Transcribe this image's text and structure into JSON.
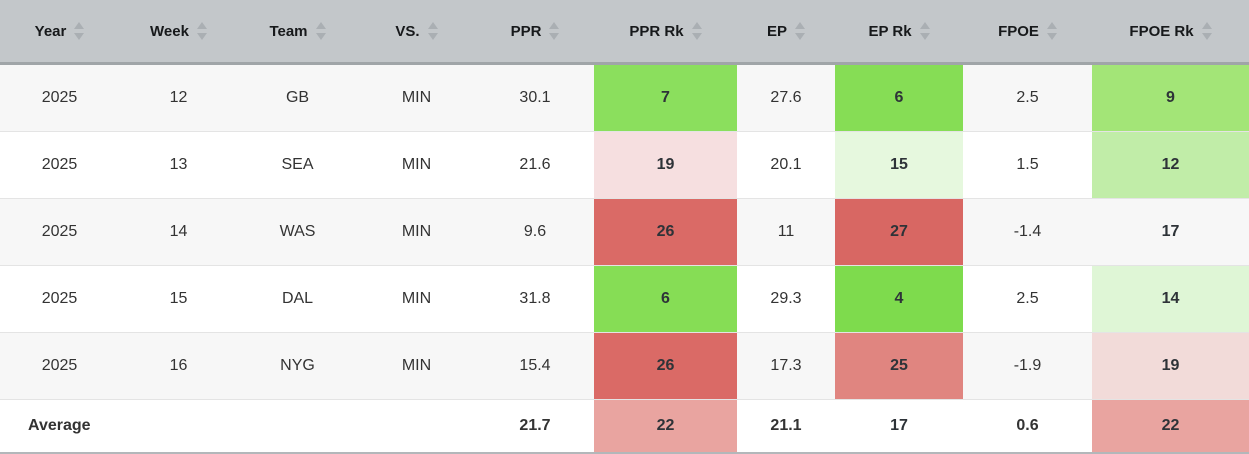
{
  "table": {
    "columns": [
      {
        "label": "Year"
      },
      {
        "label": "Week"
      },
      {
        "label": "Team"
      },
      {
        "label": "VS."
      },
      {
        "label": "PPR"
      },
      {
        "label": "PPR Rk"
      },
      {
        "label": "EP"
      },
      {
        "label": "EP Rk"
      },
      {
        "label": "FPOE"
      },
      {
        "label": "FPOE Rk"
      }
    ],
    "rows": [
      {
        "cells": [
          "2025",
          "12",
          "GB",
          "MIN",
          "30.1",
          "7",
          "27.6",
          "6",
          "2.5",
          "9"
        ],
        "cell_colors": [
          null,
          null,
          null,
          null,
          null,
          "#8bdf5d",
          null,
          "#86dd55",
          null,
          "#a3e577"
        ]
      },
      {
        "cells": [
          "2025",
          "13",
          "SEA",
          "MIN",
          "21.6",
          "19",
          "20.1",
          "15",
          "1.5",
          "12"
        ],
        "cell_colors": [
          null,
          null,
          null,
          null,
          null,
          "#f6dfe0",
          null,
          "#e6f8de",
          null,
          "#c1eda8"
        ]
      },
      {
        "cells": [
          "2025",
          "14",
          "WAS",
          "MIN",
          "9.6",
          "26",
          "11",
          "27",
          "-1.4",
          "17"
        ],
        "cell_colors": [
          null,
          null,
          null,
          null,
          null,
          "#da6a66",
          null,
          "#d86763",
          null,
          null
        ]
      },
      {
        "cells": [
          "2025",
          "15",
          "DAL",
          "MIN",
          "31.8",
          "6",
          "29.3",
          "4",
          "2.5",
          "14"
        ],
        "cell_colors": [
          null,
          null,
          null,
          null,
          null,
          "#86dd55",
          null,
          "#7edb4d",
          null,
          "#dff6d6"
        ]
      },
      {
        "cells": [
          "2025",
          "16",
          "NYG",
          "MIN",
          "15.4",
          "26",
          "17.3",
          "25",
          "-1.9",
          "19"
        ],
        "cell_colors": [
          null,
          null,
          null,
          null,
          null,
          "#da6a66",
          null,
          "#e08580",
          null,
          "#f2dbd9"
        ]
      }
    ],
    "average_row": {
      "cells": [
        "Average",
        "",
        "",
        "",
        "21.7",
        "22",
        "21.1",
        "17",
        "0.6",
        "22"
      ],
      "cell_colors": [
        null,
        null,
        null,
        null,
        null,
        "#e9a4a0",
        null,
        null,
        null,
        "#e9a4a0"
      ]
    }
  },
  "style": {
    "header_bg": "#c3c7ca",
    "alt_row_bg": "#f7f7f7",
    "strong_green": "#86dd55",
    "strong_red": "#da6a66"
  }
}
